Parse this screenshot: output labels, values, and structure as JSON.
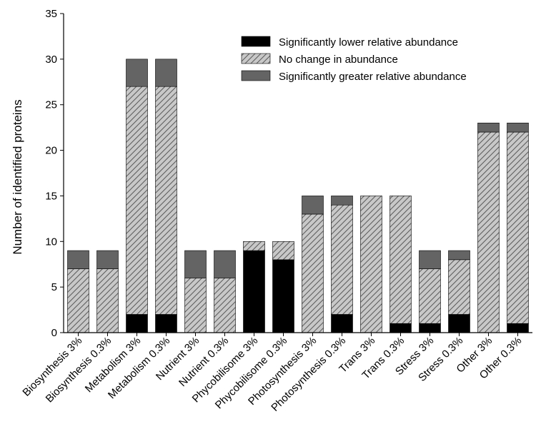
{
  "chart_data": {
    "type": "bar",
    "stacked": true,
    "categories": [
      "Biosynthesis 3%",
      "Biosynthesis 0.3%",
      "Metabolism 3%",
      "Metabolism 0.3%",
      "Nutrient 3%",
      "Nutrient 0.3%",
      "Phycobilisome 3%",
      "Phycobilisome 0.3%",
      "Photosynthesis 3%",
      "Photosynthesis 0.3%",
      "Trans 3%",
      "Trans 0.3%",
      "Stress 3%",
      "Stress 0.3%",
      "Other 3%",
      "Other 0.3%"
    ],
    "series": [
      {
        "name": "Significantly lower relative abundance",
        "color": "#000000",
        "pattern": "solid",
        "values": [
          0,
          0,
          2,
          2,
          0,
          0,
          9,
          8,
          0,
          2,
          0,
          1,
          1,
          2,
          0,
          1
        ]
      },
      {
        "name": "No change in abundance",
        "color": "#c8c8c8",
        "pattern": "hatched",
        "values": [
          7,
          7,
          25,
          25,
          6,
          6,
          1,
          2,
          13,
          12,
          15,
          14,
          6,
          6,
          22,
          21
        ]
      },
      {
        "name": "Significantly greater relative abundance",
        "color": "#646464",
        "pattern": "solid",
        "values": [
          2,
          2,
          3,
          3,
          3,
          3,
          0,
          0,
          2,
          1,
          0,
          0,
          2,
          1,
          1,
          1
        ]
      }
    ],
    "xlabel": "",
    "ylabel": "Number of identified proteins",
    "ylim": [
      0,
      35
    ],
    "yticks": [
      0,
      5,
      10,
      15,
      20,
      25,
      30,
      35
    ],
    "grid": false,
    "legend_position": "top-right"
  }
}
